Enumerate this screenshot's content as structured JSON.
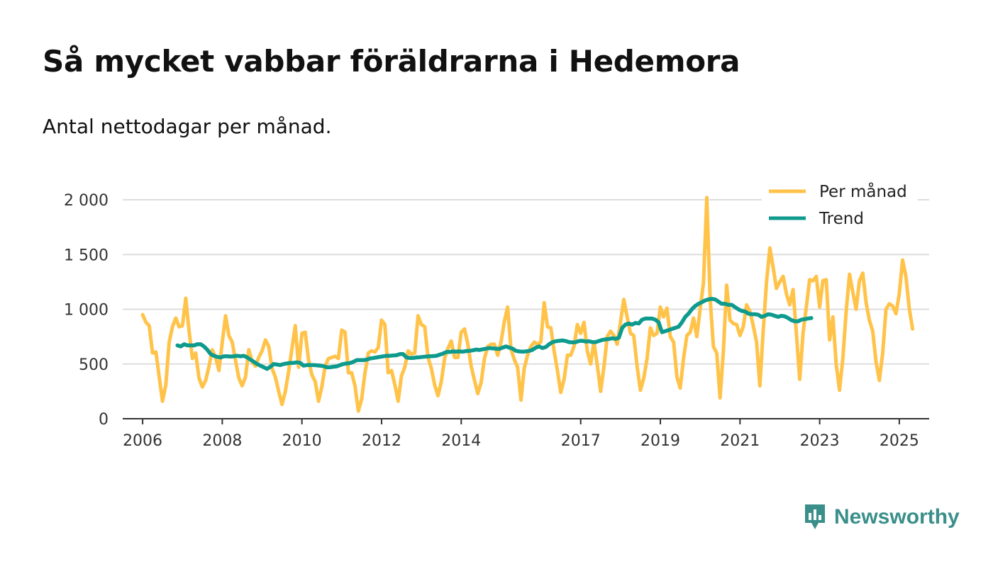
{
  "title": "Så mycket vabbar föräldrarna i Hedemora",
  "subtitle": "Antal nettodagar per månad.",
  "brand": {
    "name": "Newsworthy",
    "icon": "newsworthy-logo-icon",
    "color": "#3a8f8a"
  },
  "colors": {
    "per_month": "#ffc34a",
    "trend": "#0e9a8d",
    "grid": "#dddddd",
    "axis": "#333333"
  },
  "chart_data": {
    "type": "line",
    "title": "Så mycket vabbar föräldrarna i Hedemora",
    "xlabel": "",
    "ylabel": "",
    "xlim": [
      2005.5,
      2025.75
    ],
    "ylim": [
      0,
      2000
    ],
    "y_ticks": [
      0,
      500,
      1000,
      1500,
      2000
    ],
    "y_tick_labels": [
      "0",
      "500",
      "1 000",
      "1 500",
      "2 000"
    ],
    "x_ticks": [
      2006,
      2008,
      2010,
      2012,
      2014,
      2017,
      2019,
      2021,
      2023,
      2025
    ],
    "x_tick_labels": [
      "2006",
      "2008",
      "2010",
      "2012",
      "2014",
      "2017",
      "2019",
      "2021",
      "2023",
      "2025"
    ],
    "grid": true,
    "legend_position": "top-right",
    "series": [
      {
        "name": "Per månad",
        "color": "#ffc34a",
        "x_start": 2006.0,
        "x_step": 0.08333,
        "values": [
          950,
          880,
          850,
          600,
          610,
          380,
          160,
          310,
          700,
          840,
          920,
          840,
          850,
          1100,
          800,
          550,
          600,
          370,
          290,
          350,
          480,
          630,
          560,
          440,
          700,
          940,
          760,
          700,
          530,
          370,
          300,
          380,
          630,
          520,
          480,
          560,
          620,
          720,
          660,
          460,
          380,
          250,
          130,
          250,
          430,
          640,
          850,
          470,
          780,
          790,
          540,
          400,
          340,
          160,
          290,
          480,
          550,
          560,
          570,
          550,
          810,
          790,
          420,
          420,
          300,
          70,
          180,
          420,
          600,
          620,
          610,
          650,
          900,
          860,
          420,
          440,
          310,
          160,
          390,
          470,
          620,
          590,
          600,
          940,
          860,
          840,
          560,
          460,
          310,
          210,
          340,
          550,
          640,
          710,
          560,
          560,
          790,
          820,
          680,
          480,
          350,
          230,
          330,
          550,
          660,
          680,
          680,
          580,
          700,
          890,
          1020,
          640,
          540,
          470,
          170,
          460,
          580,
          660,
          700,
          680,
          700,
          1060,
          840,
          830,
          620,
          440,
          240,
          360,
          580,
          580,
          660,
          860,
          780,
          880,
          620,
          500,
          700,
          490,
          250,
          470,
          750,
          800,
          760,
          680,
          880,
          1090,
          930,
          780,
          760,
          480,
          260,
          370,
          550,
          830,
          760,
          780,
          1020,
          930,
          1010,
          750,
          700,
          380,
          280,
          550,
          760,
          790,
          920,
          750,
          1000,
          1240,
          2020,
          1100,
          660,
          600,
          190,
          620,
          1220,
          900,
          870,
          860,
          760,
          840,
          1040,
          980,
          850,
          700,
          300,
          800,
          1250,
          1560,
          1380,
          1190,
          1250,
          1300,
          1140,
          1040,
          1180,
          780,
          360,
          780,
          1020,
          1270,
          1260,
          1300,
          1020,
          1260,
          1270,
          720,
          930,
          500,
          260,
          550,
          980,
          1320,
          1160,
          1000,
          1260,
          1330,
          1060,
          900,
          800,
          520,
          350,
          600,
          1000,
          1050,
          1030,
          960,
          1140,
          1450,
          1300,
          1010,
          820
        ]
      },
      {
        "name": "Trend",
        "color": "#0e9a8d",
        "x_start": 2006.875,
        "x_step": 0.08333,
        "values": [
          670,
          660,
          680,
          670,
          670,
          670,
          680,
          680,
          660,
          630,
          590,
          575,
          565,
          560,
          570,
          570,
          568,
          570,
          575,
          570,
          575,
          560,
          540,
          520,
          500,
          485,
          470,
          455,
          475,
          500,
          495,
          490,
          500,
          505,
          510,
          510,
          515,
          510,
          485,
          490,
          490,
          490,
          488,
          485,
          480,
          470,
          470,
          475,
          478,
          490,
          500,
          505,
          508,
          520,
          535,
          535,
          535,
          540,
          550,
          555,
          560,
          565,
          570,
          575,
          575,
          578,
          580,
          590,
          590,
          560,
          555,
          555,
          560,
          562,
          565,
          568,
          570,
          572,
          575,
          585,
          595,
          610,
          610,
          615,
          612,
          615,
          612,
          618,
          620,
          625,
          632,
          628,
          635,
          640,
          645,
          642,
          640,
          638,
          650,
          660,
          650,
          640,
          620,
          615,
          612,
          615,
          620,
          630,
          650,
          660,
          645,
          655,
          680,
          700,
          708,
          712,
          715,
          710,
          700,
          698,
          700,
          710,
          712,
          705,
          708,
          700,
          700,
          710,
          720,
          725,
          728,
          735,
          730,
          740,
          830,
          860,
          870,
          860,
          875,
          870,
          905,
          915,
          915,
          915,
          905,
          880,
          790,
          800,
          810,
          820,
          830,
          840,
          880,
          930,
          960,
          1000,
          1030,
          1050,
          1065,
          1080,
          1090,
          1095,
          1090,
          1070,
          1050,
          1050,
          1040,
          1040,
          1020,
          1000,
          985,
          980,
          960,
          955,
          955,
          950,
          930,
          940,
          955,
          950,
          940,
          930,
          940,
          935,
          920,
          900,
          890,
          890,
          905,
          910,
          915,
          920
        ]
      }
    ]
  }
}
